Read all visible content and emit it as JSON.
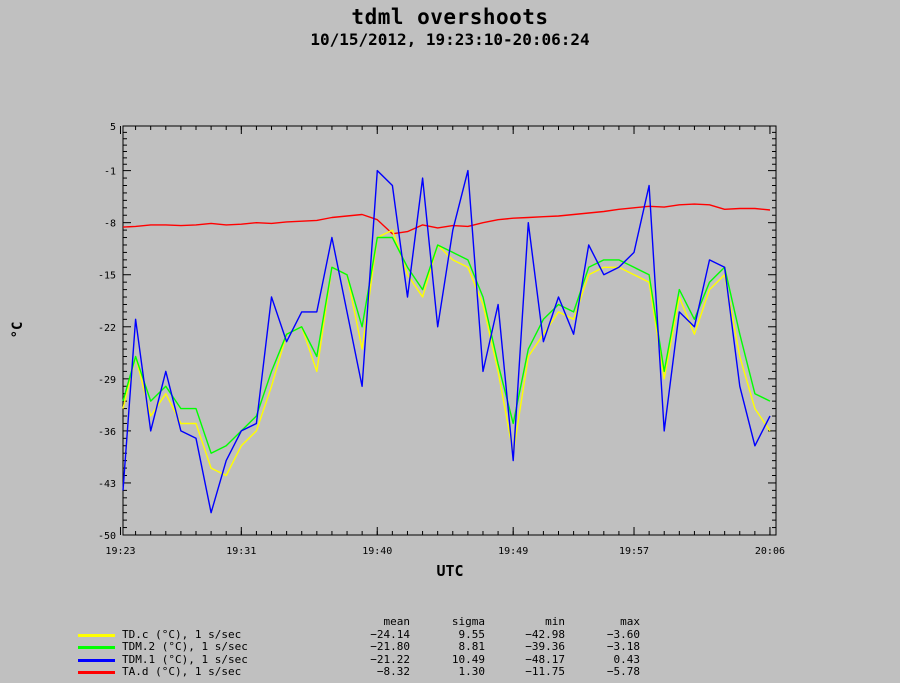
{
  "title": "tdml overshoots",
  "subtitle": "10/15/2012, 19:23:10-20:06:24",
  "colors": {
    "background": "#c0c0c0",
    "TD.c": "#ffff00",
    "TDM.2": "#00ff00",
    "TDM.1": "#0000ff",
    "TA.d": "#ff0000"
  },
  "chart_data": {
    "type": "line",
    "title": "tdml overshoots",
    "subtitle": "10/15/2012, 19:23:10-20:06:24",
    "xlabel": "UTC",
    "ylabel": "°C",
    "xlim": [
      "19:23:10",
      "20:06:24"
    ],
    "ylim": [
      -50,
      5
    ],
    "x_ticks": [
      "19:23",
      "19:31",
      "19:40",
      "19:49",
      "19:57",
      "20:06"
    ],
    "y_ticks": [
      5,
      -1,
      -8,
      -15,
      -22,
      -29,
      -36,
      -43,
      -50
    ],
    "grid": false,
    "x": [
      "19:23",
      "19:24",
      "19:25",
      "19:26",
      "19:27",
      "19:28",
      "19:29",
      "19:30",
      "19:31",
      "19:32",
      "19:33",
      "19:34",
      "19:35",
      "19:36",
      "19:37",
      "19:38",
      "19:39",
      "19:40",
      "19:41",
      "19:42",
      "19:43",
      "19:44",
      "19:45",
      "19:46",
      "19:47",
      "19:48",
      "19:49",
      "19:50",
      "19:51",
      "19:52",
      "19:53",
      "19:54",
      "19:55",
      "19:56",
      "19:57",
      "19:58",
      "19:59",
      "20:00",
      "20:01",
      "20:02",
      "20:03",
      "20:04",
      "20:05",
      "20:06"
    ],
    "series": [
      {
        "name": "TD.c (°C), 1 s/sec",
        "color": "#ffff00",
        "values": [
          -33,
          -26,
          -34,
          -31,
          -35,
          -35,
          -41,
          -42,
          -38,
          -36,
          -30,
          -23,
          -22,
          -28,
          -14,
          -15,
          -25,
          -10,
          -9,
          -15,
          -18,
          -11,
          -13,
          -14,
          -19,
          -28,
          -39,
          -26,
          -23,
          -20,
          -21,
          -15,
          -14,
          -14,
          -15,
          -16,
          -29,
          -18,
          -23,
          -17,
          -15,
          -26,
          -33,
          -36
        ]
      },
      {
        "name": "TDM.2 (°C), 1 s/sec",
        "color": "#00ff00",
        "values": [
          -32,
          -26,
          -32,
          -30,
          -33,
          -33,
          -39,
          -38,
          -36,
          -34,
          -28,
          -23,
          -22,
          -26,
          -14,
          -15,
          -22,
          -10,
          -10,
          -14,
          -17,
          -11,
          -12,
          -13,
          -18,
          -27,
          -35,
          -25,
          -21,
          -19,
          -20,
          -14,
          -13,
          -13,
          -14,
          -15,
          -28,
          -17,
          -21,
          -16,
          -14,
          -23,
          -31,
          -32
        ]
      },
      {
        "name": "TDM.1 (°C), 1 s/sec",
        "color": "#0000ff",
        "values": [
          -44,
          -21,
          -36,
          -28,
          -36,
          -37,
          -47,
          -40,
          -36,
          -35,
          -18,
          -24,
          -20,
          -20,
          -10,
          -20,
          -30,
          -1,
          -3,
          -18,
          -2,
          -22,
          -9,
          -1,
          -28,
          -19,
          -40,
          -8,
          -24,
          -18,
          -23,
          -11,
          -15,
          -14,
          -12,
          -3,
          -36,
          -20,
          -22,
          -13,
          -14,
          -30,
          -38,
          -34
        ]
      },
      {
        "name": "TA.d (°C), 1 s/sec",
        "color": "#ff0000",
        "values": [
          -8.6,
          -8.5,
          -8.3,
          -8.3,
          -8.4,
          -8.3,
          -8.1,
          -8.3,
          -8.2,
          -8.0,
          -8.1,
          -7.9,
          -7.8,
          -7.7,
          -7.3,
          -7.1,
          -6.9,
          -7.6,
          -9.5,
          -9.2,
          -8.3,
          -8.7,
          -8.4,
          -8.5,
          -8.0,
          -7.6,
          -7.4,
          -7.3,
          -7.2,
          -7.1,
          -6.9,
          -6.7,
          -6.5,
          -6.2,
          -6.0,
          -5.8,
          -5.9,
          -5.6,
          -5.5,
          -5.6,
          -6.2,
          -6.1,
          -6.1,
          -6.3
        ]
      }
    ]
  },
  "stats": {
    "headers": {
      "mean": "mean",
      "sigma": "sigma",
      "min": "min",
      "max": "max"
    },
    "rows": [
      {
        "name": "TD.c (°C), 1 s/sec",
        "color": "#ffff00",
        "mean": "−24.14",
        "sigma": "9.55",
        "min": "−42.98",
        "max": "−3.60"
      },
      {
        "name": "TDM.2 (°C), 1 s/sec",
        "color": "#00ff00",
        "mean": "−21.80",
        "sigma": "8.81",
        "min": "−39.36",
        "max": "−3.18"
      },
      {
        "name": "TDM.1 (°C), 1 s/sec",
        "color": "#0000ff",
        "mean": "−21.22",
        "sigma": "10.49",
        "min": "−48.17",
        "max": "0.43"
      },
      {
        "name": "TA.d (°C), 1 s/sec",
        "color": "#ff0000",
        "mean": "−8.32",
        "sigma": "1.30",
        "min": "−11.75",
        "max": "−5.78"
      }
    ]
  }
}
